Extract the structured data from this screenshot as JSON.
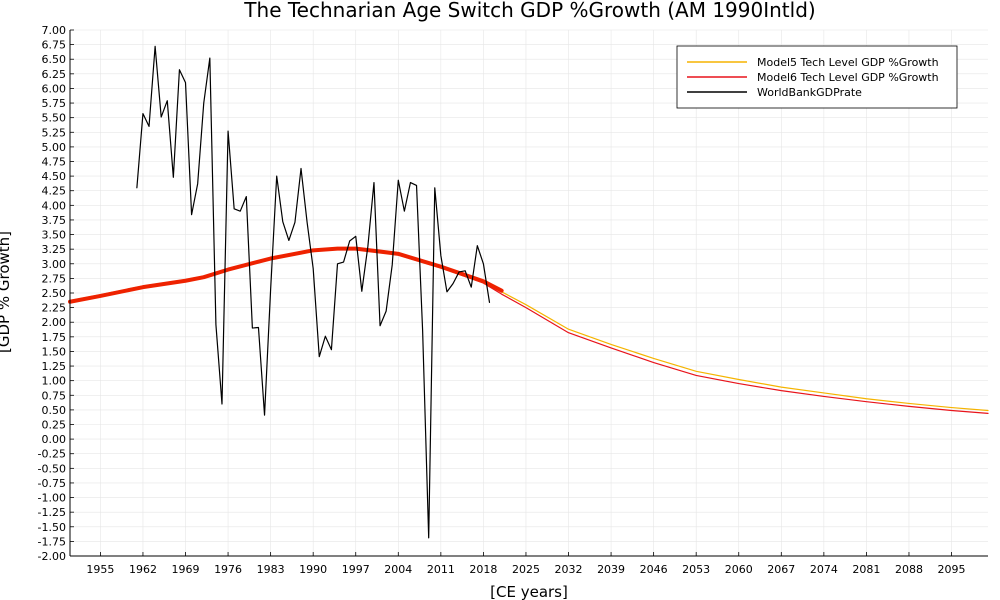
{
  "chart_data": {
    "type": "line",
    "title": "The Technarian Age Switch GDP %Growth (AM 1990Intld)",
    "xlabel": "[CE years]",
    "ylabel": "[GDP % Growth]",
    "xlim": [
      1950,
      2101
    ],
    "ylim": [
      -2.0,
      7.0
    ],
    "grid": true,
    "legend_position": "top-right",
    "x_ticks": [
      "1955",
      "1962",
      "1969",
      "1976",
      "1983",
      "1990",
      "1997",
      "2004",
      "2011",
      "2018",
      "2025",
      "2032",
      "2039",
      "2046",
      "2053",
      "2060",
      "2067",
      "2074",
      "2081",
      "2088",
      "2095"
    ],
    "y_ticks": [
      "-2.00",
      "-1.75",
      "-1.50",
      "-1.25",
      "-1.00",
      "-0.75",
      "-0.50",
      "-0.25",
      "0.00",
      "0.25",
      "0.50",
      "0.75",
      "1.00",
      "1.25",
      "1.50",
      "1.75",
      "2.00",
      "2.25",
      "2.50",
      "2.75",
      "3.00",
      "3.25",
      "3.50",
      "3.75",
      "4.00",
      "4.25",
      "4.50",
      "4.75",
      "5.00",
      "5.25",
      "5.50",
      "5.75",
      "6.00",
      "6.25",
      "6.50",
      "6.75",
      "7.00"
    ],
    "series": [
      {
        "name": "Model5 Tech Level GDP %Growth",
        "color": "#f5b400",
        "width": 1.2,
        "x": [
          1950,
          1955,
          1962,
          1969,
          1972,
          1976,
          1983,
          1990,
          1994,
          1997,
          2004,
          2011,
          2018,
          2021,
          2025,
          2032,
          2039,
          2046,
          2053,
          2060,
          2067,
          2074,
          2081,
          2088,
          2095,
          2101
        ],
        "y": [
          2.37,
          2.47,
          2.62,
          2.73,
          2.79,
          2.92,
          3.1,
          3.24,
          3.27,
          3.27,
          3.18,
          2.97,
          2.72,
          2.52,
          2.3,
          1.88,
          1.62,
          1.38,
          1.16,
          1.02,
          0.89,
          0.79,
          0.69,
          0.61,
          0.54,
          0.49
        ]
      },
      {
        "name": "Model6 Tech Level GDP %Growth",
        "color": "#e8141b",
        "width": 1.2,
        "x": [
          1950,
          1955,
          1962,
          1969,
          1972,
          1976,
          1983,
          1990,
          1994,
          1997,
          2004,
          2011,
          2018,
          2021,
          2025,
          2032,
          2039,
          2046,
          2053,
          2060,
          2067,
          2074,
          2081,
          2088,
          2095,
          2101
        ],
        "y": [
          2.33,
          2.44,
          2.59,
          2.7,
          2.76,
          2.89,
          3.08,
          3.22,
          3.26,
          3.26,
          3.15,
          2.93,
          2.67,
          2.48,
          2.25,
          1.82,
          1.56,
          1.31,
          1.09,
          0.95,
          0.83,
          0.73,
          0.64,
          0.56,
          0.49,
          0.44
        ]
      },
      {
        "name": "",
        "color": "#ee2200",
        "width": 4,
        "legend": false,
        "x": [
          1950,
          1955,
          1962,
          1969,
          1972,
          1976,
          1983,
          1990,
          1994,
          1997,
          2004,
          2011,
          2018,
          2021
        ],
        "y": [
          2.35,
          2.45,
          2.6,
          2.71,
          2.77,
          2.9,
          3.09,
          3.23,
          3.26,
          3.26,
          3.17,
          2.95,
          2.7,
          2.54
        ]
      },
      {
        "name": "WorldBankGDPrate",
        "color": "#000000",
        "width": 1.2,
        "x": [
          1961,
          1962,
          1963,
          1964,
          1965,
          1966,
          1967,
          1968,
          1969,
          1970,
          1971,
          1972,
          1973,
          1974,
          1975,
          1976,
          1977,
          1978,
          1979,
          1980,
          1981,
          1982,
          1983,
          1984,
          1985,
          1986,
          1987,
          1988,
          1989,
          1990,
          1991,
          1992,
          1993,
          1994,
          1995,
          1996,
          1997,
          1998,
          1999,
          2000,
          2001,
          2002,
          2003,
          2004,
          2005,
          2006,
          2007,
          2008,
          2009,
          2010,
          2011,
          2012,
          2013,
          2014,
          2015,
          2016,
          2017,
          2018,
          2019
        ],
        "y": [
          4.3,
          5.57,
          5.35,
          6.72,
          5.51,
          5.79,
          4.48,
          6.32,
          6.1,
          3.84,
          4.37,
          5.75,
          6.52,
          1.96,
          0.6,
          5.27,
          3.94,
          3.9,
          4.15,
          1.9,
          1.91,
          0.41,
          2.56,
          4.5,
          3.72,
          3.4,
          3.71,
          4.63,
          3.71,
          2.92,
          1.41,
          1.76,
          1.53,
          3.0,
          3.03,
          3.39,
          3.47,
          2.53,
          3.3,
          4.39,
          1.94,
          2.19,
          2.98,
          4.43,
          3.9,
          4.39,
          4.34,
          1.86,
          -1.69,
          4.3,
          3.14,
          2.52,
          2.66,
          2.86,
          2.88,
          2.6,
          3.31,
          3.0,
          2.34
        ]
      }
    ]
  }
}
